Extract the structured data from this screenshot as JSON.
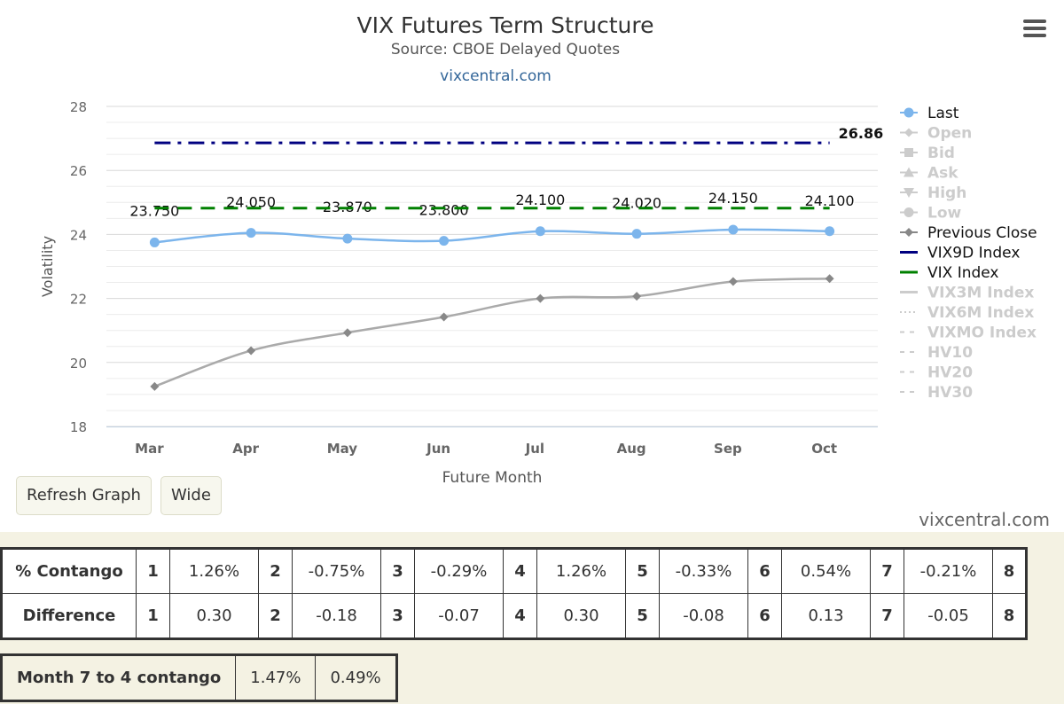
{
  "chart_data": {
    "type": "line",
    "title": "VIX Futures Term Structure",
    "subtitle": "Source: CBOE Delayed Quotes",
    "credit_link": "vixcentral.com",
    "xlabel": "Future Month",
    "ylabel": "Volatility",
    "categories": [
      "Mar",
      "Apr",
      "May",
      "Jun",
      "Jul",
      "Aug",
      "Sep",
      "Oct"
    ],
    "ylim": [
      18,
      28
    ],
    "yticks": [
      18,
      20,
      22,
      24,
      26,
      28
    ],
    "grid": true,
    "legend_position": "right",
    "series": [
      {
        "name": "Last",
        "values": [
          23.75,
          24.05,
          23.87,
          23.8,
          24.1,
          24.02,
          24.15,
          24.1
        ],
        "data_labels": [
          "23.750",
          "24.050",
          "23.870",
          "23.800",
          "24.100",
          "24.020",
          "24.150",
          "24.100"
        ],
        "color": "#7cb5ec",
        "style": "spline-markers"
      },
      {
        "name": "Previous Close",
        "values": [
          19.25,
          20.37,
          20.93,
          21.42,
          22.0,
          22.07,
          22.53,
          22.62
        ],
        "color": "#aaaaaa",
        "style": "spline-diamonds"
      },
      {
        "name": "VIX9D Index",
        "values": [
          26.86,
          26.86,
          26.86,
          26.86,
          26.86,
          26.86,
          26.86,
          26.86
        ],
        "end_label": "26.86",
        "color": "#000080",
        "style": "dash-dot"
      },
      {
        "name": "VIX Index",
        "values": [
          24.82,
          24.82,
          24.82,
          24.82,
          24.82,
          24.82,
          24.82,
          24.82
        ],
        "color": "#008000",
        "style": "dashed"
      }
    ],
    "legend": [
      {
        "name": "Last",
        "active": true,
        "symbol": "circle",
        "color": "#7cb5ec"
      },
      {
        "name": "Open",
        "active": false,
        "symbol": "diamond",
        "color": "#cccccc"
      },
      {
        "name": "Bid",
        "active": false,
        "symbol": "square",
        "color": "#cccccc"
      },
      {
        "name": "Ask",
        "active": false,
        "symbol": "triangle",
        "color": "#cccccc"
      },
      {
        "name": "High",
        "active": false,
        "symbol": "triangle-down",
        "color": "#cccccc"
      },
      {
        "name": "Low",
        "active": false,
        "symbol": "circle",
        "color": "#cccccc"
      },
      {
        "name": "Previous Close",
        "active": true,
        "symbol": "diamond",
        "color": "#888888"
      },
      {
        "name": "VIX9D Index",
        "active": true,
        "symbol": "line",
        "color": "#000080"
      },
      {
        "name": "VIX Index",
        "active": true,
        "symbol": "line",
        "color": "#008000"
      },
      {
        "name": "VIX3M Index",
        "active": false,
        "symbol": "line",
        "color": "#cccccc"
      },
      {
        "name": "VIX6M Index",
        "active": false,
        "symbol": "dotted",
        "color": "#cccccc"
      },
      {
        "name": "VIXMO Index",
        "active": false,
        "symbol": "dashed",
        "color": "#cccccc"
      },
      {
        "name": "HV10",
        "active": false,
        "symbol": "dashed",
        "color": "#cccccc"
      },
      {
        "name": "HV20",
        "active": false,
        "symbol": "dashed",
        "color": "#cccccc"
      },
      {
        "name": "HV30",
        "active": false,
        "symbol": "dashed",
        "color": "#cccccc"
      }
    ]
  },
  "buttons": {
    "refresh": "Refresh Graph",
    "wide": "Wide"
  },
  "watermark": "vixcentral.com",
  "contango_table": {
    "rows": [
      {
        "label": "% Contango",
        "cells": [
          {
            "n": "1",
            "v": "1.26%"
          },
          {
            "n": "2",
            "v": "-0.75%"
          },
          {
            "n": "3",
            "v": "-0.29%"
          },
          {
            "n": "4",
            "v": "1.26%"
          },
          {
            "n": "5",
            "v": "-0.33%"
          },
          {
            "n": "6",
            "v": "0.54%"
          },
          {
            "n": "7",
            "v": "-0.21%"
          },
          {
            "n": "8",
            "v": ""
          }
        ]
      },
      {
        "label": "Difference",
        "cells": [
          {
            "n": "1",
            "v": "0.30"
          },
          {
            "n": "2",
            "v": "-0.18"
          },
          {
            "n": "3",
            "v": "-0.07"
          },
          {
            "n": "4",
            "v": "0.30"
          },
          {
            "n": "5",
            "v": "-0.08"
          },
          {
            "n": "6",
            "v": "0.13"
          },
          {
            "n": "7",
            "v": "-0.05"
          },
          {
            "n": "8",
            "v": ""
          }
        ]
      }
    ]
  },
  "month_7_4": {
    "label": "Month 7 to 4 contango",
    "v1": "1.47%",
    "v2": "0.49%"
  }
}
